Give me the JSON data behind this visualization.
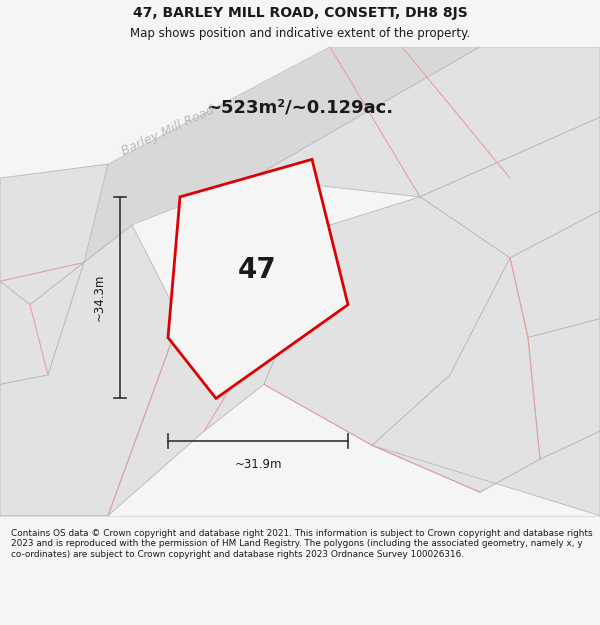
{
  "title_line1": "47, BARLEY MILL ROAD, CONSETT, DH8 8JS",
  "title_line2": "Map shows position and indicative extent of the property.",
  "area_text": "~523m²/~0.129ac.",
  "number_label": "47",
  "width_label": "~31.9m",
  "height_label": "~34.3m",
  "road_label": "Barley Mill Road",
  "footer_text": "Contains OS data © Crown copyright and database right 2021. This information is subject to Crown copyright and database rights 2023 and is reproduced with the permission of HM Land Registry. The polygons (including the associated geometry, namely x, y co-ordinates) are subject to Crown copyright and database rights 2023 Ordnance Survey 100026316.",
  "bg_color": "#f5f5f5",
  "map_bg": "#eeeeee",
  "plot_outline_color": "#dd0000",
  "pink_line_color": "#e8a0a0",
  "parcel_fill": "#e2e2e2",
  "parcel_edge": "#b8b8b8",
  "road_fill": "#d8d8d8",
  "road_edge": "#c0c0c0",
  "footer_bg": "#ffffff",
  "dim_color": "#333333",
  "text_color": "#1a1a1a",
  "road_label_color": "#bbbbbb"
}
